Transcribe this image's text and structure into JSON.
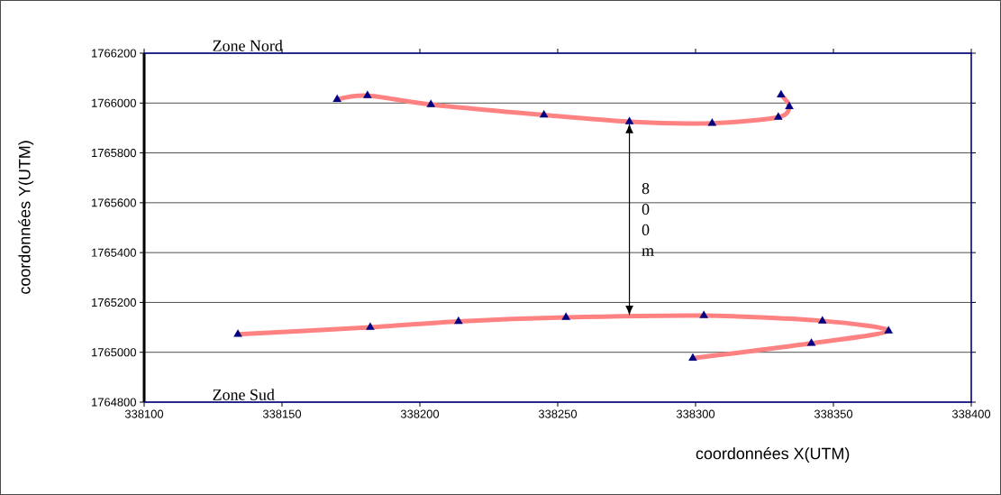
{
  "chart_data": {
    "type": "line",
    "xlabel": "coordonnées X(UTM)",
    "ylabel": "coordonnées Y(UTM)",
    "series": [
      {
        "color": "#000080",
        "x": [
          338170,
          338181,
          338204,
          338245,
          338276,
          338306,
          338330,
          338334,
          338331
        ],
        "values": [
          1766015,
          1766030,
          1765994,
          1765952,
          1765925,
          1765919,
          1765943,
          1765986,
          1766033
        ]
      },
      {
        "color": "#000080",
        "x": [
          338134,
          338182,
          338214,
          338253,
          338303,
          338346,
          338370,
          338342,
          338299
        ],
        "values": [
          1765072,
          1765100,
          1765124,
          1765140,
          1765147,
          1765126,
          1765086,
          1765036,
          1764976
        ]
      }
    ],
    "annotations": [
      "Zone Nord",
      "Zone Sud",
      "8 0 0 m"
    ],
    "xlim": [
      338100,
      338400
    ],
    "ylim": [
      1764800,
      1766200
    ],
    "xticks": [
      338100,
      338150,
      338200,
      338250,
      338300,
      338350,
      338400
    ],
    "yticks": [
      1764800,
      1765000,
      1765200,
      1765400,
      1765600,
      1765800,
      1766000,
      1766200
    ],
    "grid": "y",
    "marker": "triangle"
  }
}
